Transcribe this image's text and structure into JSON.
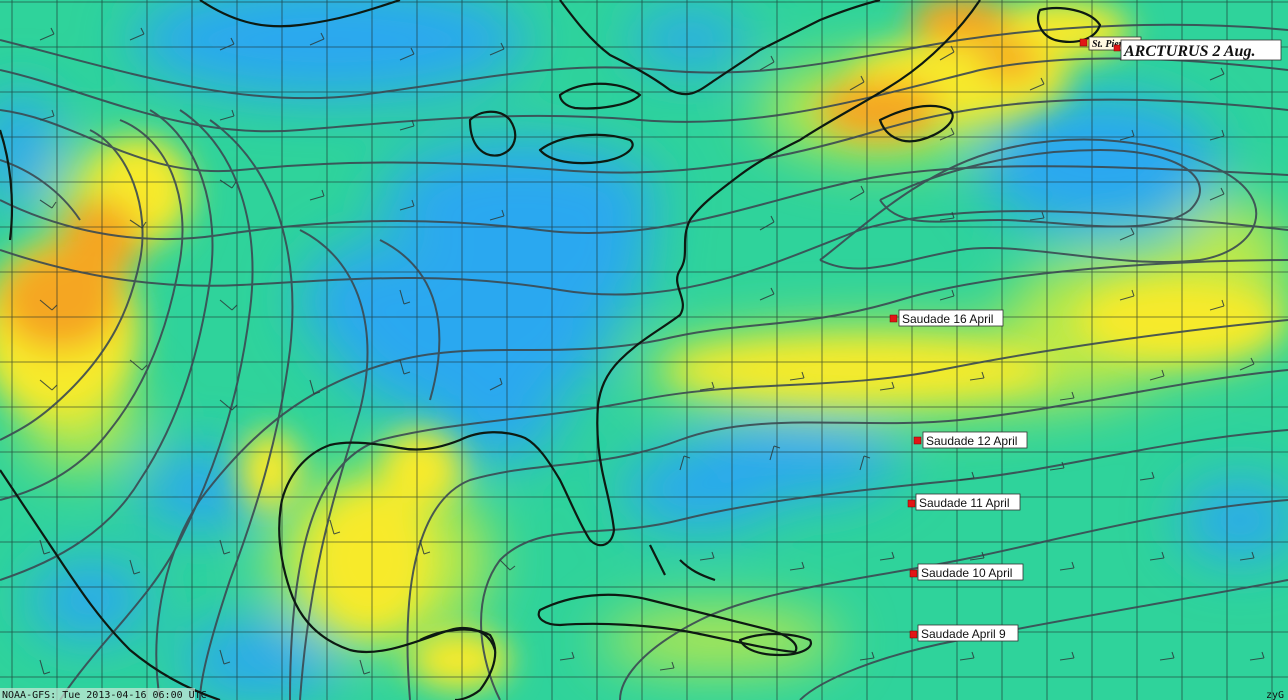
{
  "map": {
    "footer_left": "NOAA-GFS: Tue 2013-04-16 06:00 UTC",
    "footer_right": "zyG"
  },
  "markers": {
    "st_pierre": "St. Pierre",
    "arcturus": "ARCTURUS 2  Aug.",
    "saudade_16": "Saudade 16 April",
    "saudade_12": "Saudade 12 April",
    "saudade_11": "Saudade 11 April",
    "saudade_10": "Saudade 10 April",
    "saudade_9": "Saudade April 9"
  },
  "colors": {
    "calm_blue": "#2aa8f0",
    "green": "#2fd39b",
    "yellow_green": "#bde94a",
    "yellow": "#f7ea2a",
    "orange": "#f5a623",
    "isobar": "#3b4a52",
    "coast": "#0d1a12",
    "marker": "#e21515"
  }
}
